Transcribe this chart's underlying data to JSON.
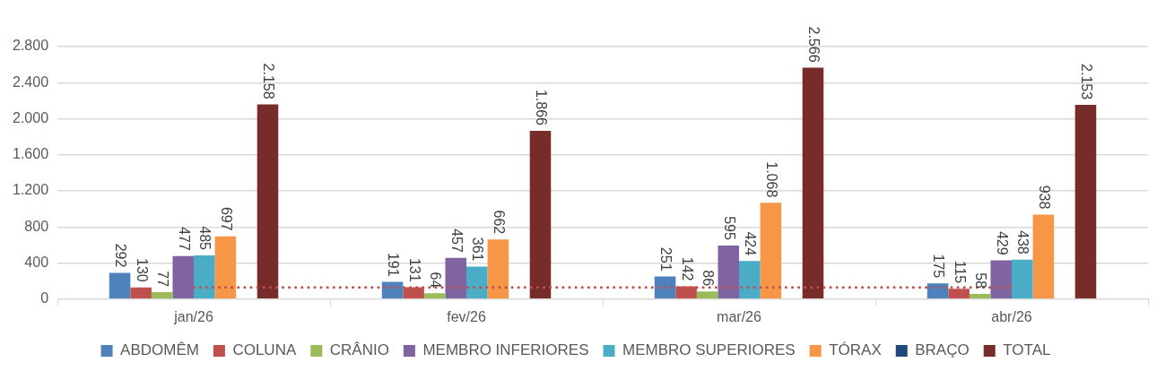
{
  "chart_data": {
    "type": "bar",
    "categories": [
      "jan/26",
      "fev/26",
      "mar/26",
      "abr/26"
    ],
    "series": [
      {
        "name": "ABDOMÊM",
        "color": "#4f81bd",
        "values": [
          292,
          191,
          251,
          175
        ],
        "value_labels": [
          "292",
          "191",
          "251",
          "175"
        ]
      },
      {
        "name": "COLUNA",
        "color": "#c0504d",
        "values": [
          130,
          131,
          142,
          115
        ],
        "value_labels": [
          "130",
          "131",
          "142",
          "115"
        ]
      },
      {
        "name": "CRÂNIO",
        "color": "#9bbb59",
        "values": [
          77,
          64,
          86,
          58
        ],
        "value_labels": [
          "77",
          "64",
          "86",
          "58"
        ]
      },
      {
        "name": "MEMBRO INFERIORES",
        "color": "#8064a2",
        "values": [
          477,
          457,
          595,
          429
        ],
        "value_labels": [
          "477",
          "457",
          "595",
          "429"
        ]
      },
      {
        "name": "MEMBRO SUPERIORES",
        "color": "#4bacc6",
        "values": [
          485,
          361,
          424,
          438
        ],
        "value_labels": [
          "485",
          "361",
          "424",
          "438"
        ]
      },
      {
        "name": "TÓRAX",
        "color": "#f79646",
        "values": [
          697,
          662,
          1068,
          938
        ],
        "value_labels": [
          "697",
          "662",
          "1.068",
          "938"
        ]
      },
      {
        "name": "BRAÇO",
        "color": "#1f497d",
        "values": [
          null,
          null,
          null,
          null
        ]
      },
      {
        "name": "TOTAL",
        "color": "#772c2a",
        "values": [
          2158,
          1866,
          2566,
          2153
        ],
        "value_labels": [
          "2.158",
          "1.866",
          "2.566",
          "2.153"
        ]
      },
      {
        "type": "line",
        "color": "#c0504d",
        "line_style": "dotted",
        "marker": "none",
        "values": [
          130,
          130,
          130,
          130
        ]
      }
    ],
    "ylim": [
      0,
      2800
    ],
    "yticks": [
      0,
      400,
      800,
      {
        "value": 1200,
        "label": "1.200"
      },
      {
        "value": 1600,
        "label": "1.600"
      },
      {
        "value": 2000,
        "label": "2.000"
      },
      {
        "value": 2400,
        "label": "2.400"
      },
      {
        "value": 2800,
        "label": "2.800"
      }
    ],
    "grid": "y",
    "legend": "bottom"
  }
}
